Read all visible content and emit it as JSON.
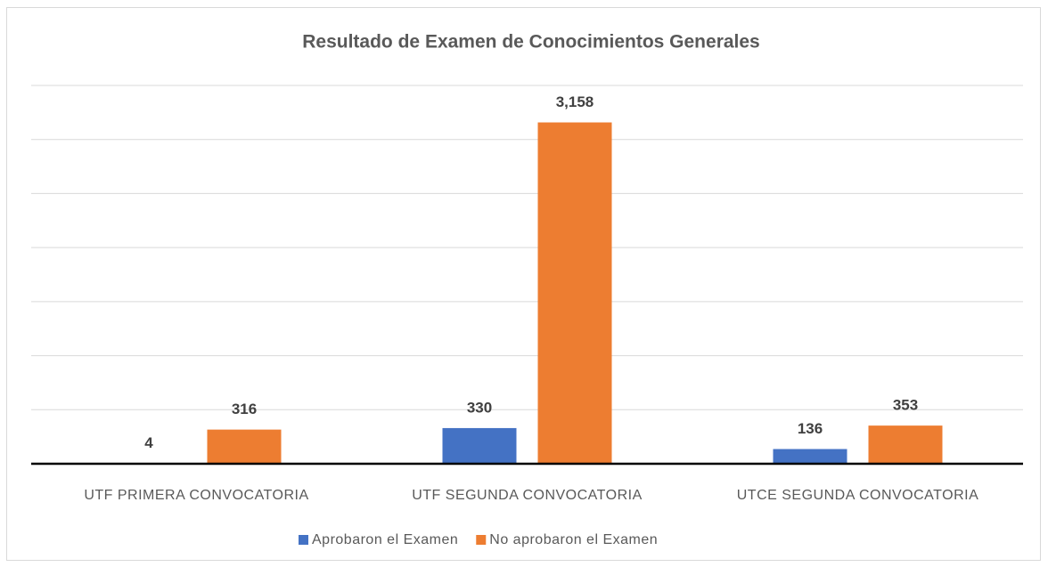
{
  "chart_data": {
    "type": "bar",
    "title": "Resultado de Examen de Conocimientos Generales",
    "categories": [
      "UTF PRIMERA CONVOCATORIA",
      "UTF SEGUNDA CONVOCATORIA",
      "UTCE SEGUNDA CONVOCATORIA"
    ],
    "series": [
      {
        "name": "Aprobaron el Examen",
        "color": "#4472c4",
        "values": [
          4,
          330,
          136
        ]
      },
      {
        "name": "No aprobaron el Examen",
        "color": "#ed7d31",
        "values": [
          316,
          3158,
          353
        ],
        "value_labels": [
          "316",
          "3,158",
          "353"
        ]
      }
    ],
    "ylim": [
      0,
      3500
    ],
    "yticks": [
      0,
      500,
      1000,
      1500,
      2000,
      2500,
      3000,
      3500
    ],
    "grid": true,
    "legend": "bottom"
  }
}
